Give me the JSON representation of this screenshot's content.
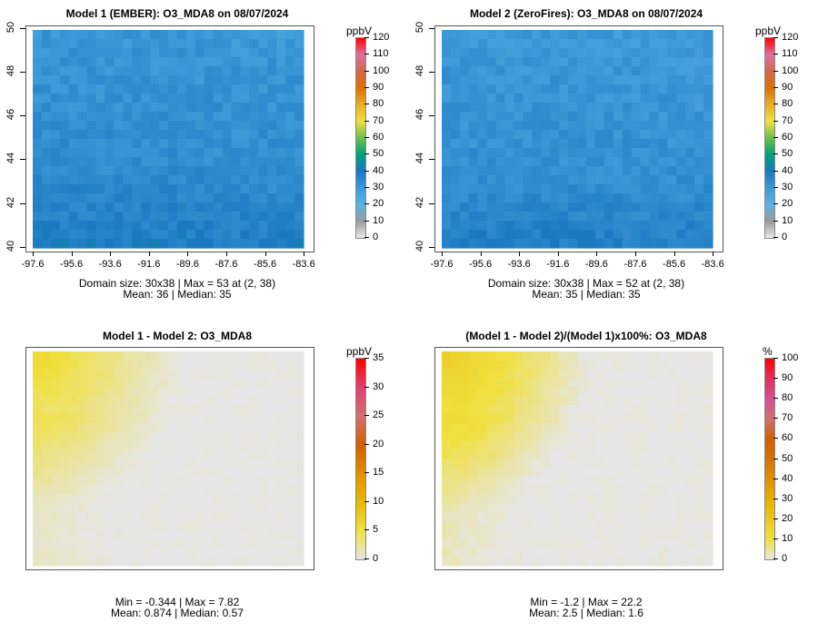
{
  "chart_data": [
    {
      "type": "heatmap",
      "title": "Model 1 (EMBER): O3_MDA8 on 08/07/2024",
      "unit": "ppbV",
      "x_ticks": [
        "-97.6",
        "-95.6",
        "-93.6",
        "-91.6",
        "-89.6",
        "-87.6",
        "-85.6",
        "-83.6"
      ],
      "y_ticks": [
        "40",
        "42",
        "44",
        "46",
        "48",
        "50"
      ],
      "colorbar": {
        "range": [
          0,
          120
        ],
        "ticks": [
          "0",
          "10",
          "20",
          "30",
          "40",
          "50",
          "60",
          "70",
          "80",
          "90",
          "100",
          "110",
          "120"
        ],
        "colors": [
          "#e8e8e8",
          "#9a9a9a",
          "#5ab4e6",
          "#3c9ad8",
          "#1a78c0",
          "#00a07c",
          "#6cc04a",
          "#f0e040",
          "#e8b020",
          "#e07000",
          "#d06848",
          "#e070a0",
          "#ff0000"
        ]
      },
      "line1": "Domain size: 30x38 | Max = 53 at (2, 38)",
      "line2": "Mean: 36 |  Median: 35",
      "mean": 36,
      "max": 53
    },
    {
      "type": "heatmap",
      "title": "Model 2 (ZeroFires): O3_MDA8 on 08/07/2024",
      "unit": "ppbV",
      "x_ticks": [
        "-97.6",
        "-95.6",
        "-93.6",
        "-91.6",
        "-89.6",
        "-87.6",
        "-85.6",
        "-83.6"
      ],
      "y_ticks": [
        "40",
        "42",
        "44",
        "46",
        "48",
        "50"
      ],
      "colorbar": {
        "range": [
          0,
          120
        ],
        "ticks": [
          "0",
          "10",
          "20",
          "30",
          "40",
          "50",
          "60",
          "70",
          "80",
          "90",
          "100",
          "110",
          "120"
        ],
        "colors": [
          "#e8e8e8",
          "#9a9a9a",
          "#5ab4e6",
          "#3c9ad8",
          "#1a78c0",
          "#00a07c",
          "#6cc04a",
          "#f0e040",
          "#e8b020",
          "#e07000",
          "#d06848",
          "#e070a0",
          "#ff0000"
        ]
      },
      "line1": "Domain size: 30x38 | Max = 52 at (2, 38)",
      "line2": "Mean: 35 |  Median: 35",
      "mean": 35,
      "max": 52
    },
    {
      "type": "heatmap",
      "title": "Model 1 - Model 2: O3_MDA8",
      "unit": "ppbV",
      "colorbar": {
        "range": [
          0,
          35
        ],
        "ticks": [
          "0",
          "5",
          "10",
          "15",
          "20",
          "25",
          "30",
          "35"
        ],
        "colors": [
          "#e6e6e6",
          "#f0e040",
          "#e8b800",
          "#e09000",
          "#d06000",
          "#d07070",
          "#e04070",
          "#ff0000"
        ]
      },
      "line1": "Min = -0.344 | Max = 7.82",
      "line2": "Mean: 0.874 |  Median: 0.57",
      "mean": 0.874,
      "max": 7.82
    },
    {
      "type": "heatmap",
      "title": "(Model 1 - Model 2)/(Model 1)x100%: O3_MDA8",
      "unit": "%",
      "colorbar": {
        "range": [
          0,
          100
        ],
        "ticks": [
          "0",
          "10",
          "20",
          "30",
          "40",
          "50",
          "60",
          "70",
          "80",
          "90",
          "100"
        ],
        "colors": [
          "#e6e6e6",
          "#f0e040",
          "#ecc820",
          "#e8b000",
          "#e09000",
          "#d87000",
          "#d06000",
          "#d07070",
          "#d85090",
          "#e03060",
          "#ff0000"
        ]
      },
      "line1": "Min = -1.2 | Max = 22.2",
      "line2": "Mean: 2.5 |  Median: 1.6",
      "mean": 2.5,
      "max": 22.2
    }
  ]
}
